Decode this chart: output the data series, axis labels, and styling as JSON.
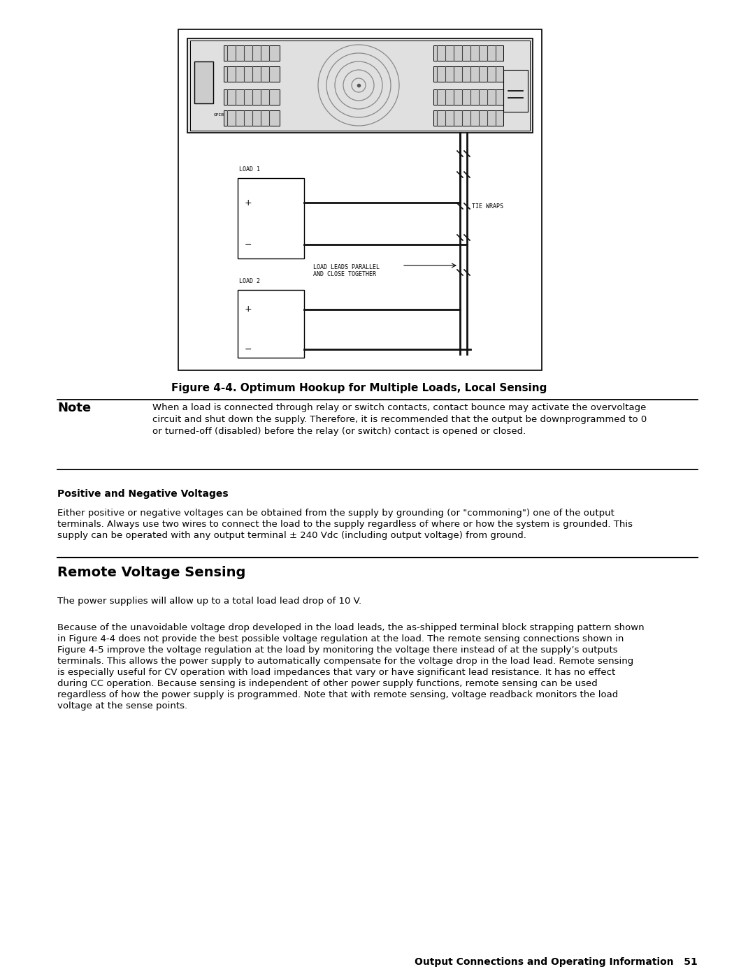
{
  "page_bg": "#ffffff",
  "text_color": "#000000",
  "figure_caption": "Figure 4-4. Optimum Hookup for Multiple Loads, Local Sensing",
  "note_label": "Note",
  "note_text_line1": "When a load is connected through relay or switch contacts, contact bounce may activate the overvoltage",
  "note_text_line2": "circuit and shut down the supply. Therefore, it is recommended that the output be downprogrammed to 0",
  "note_text_line3": "or turned-off (disabled) before the relay (or switch) contact is opened or closed.",
  "section_heading": "Positive and Negative Voltages",
  "section_body_line1": "Either positive or negative voltages can be obtained from the supply by grounding (or \"commoning\") one of the output",
  "section_body_line2": "terminals. Always use two wires to connect the load to the supply regardless of where or how the system is grounded. This",
  "section_body_line3": "supply can be operated with any output terminal ± 240 Vdc (including output voltage) from ground.",
  "rvs_heading": "Remote Voltage Sensing",
  "rvs_para1": "The power supplies will allow up to a total load lead drop of 10 V.",
  "rvs_para2_line1": "Because of the unavoidable voltage drop developed in the load leads, the as-shipped terminal block strapping pattern shown",
  "rvs_para2_line2": "in Figure 4-4 does not provide the best possible voltage regulation at the load. The remote sensing connections shown in",
  "rvs_para2_line3": "Figure 4-5 improve the voltage regulation at the load by monitoring the voltage there instead of at the supply’s outputs",
  "rvs_para2_line4": "terminals. This allows the power supply to automatically compensate for the voltage drop in the load lead. Remote sensing",
  "rvs_para2_line5": "is especially useful for CV operation with load impedances that vary or have significant lead resistance. It has no effect",
  "rvs_para2_line6": "during CC operation. Because sensing is independent of other power supply functions, remote sensing can be used",
  "rvs_para2_line7": "regardless of how the power supply is programmed. Note that with remote sensing, voltage readback monitors the load",
  "rvs_para2_line8": "voltage at the sense points.",
  "footer_bold": "Output Connections and Operating Information",
  "footer_num": "51"
}
